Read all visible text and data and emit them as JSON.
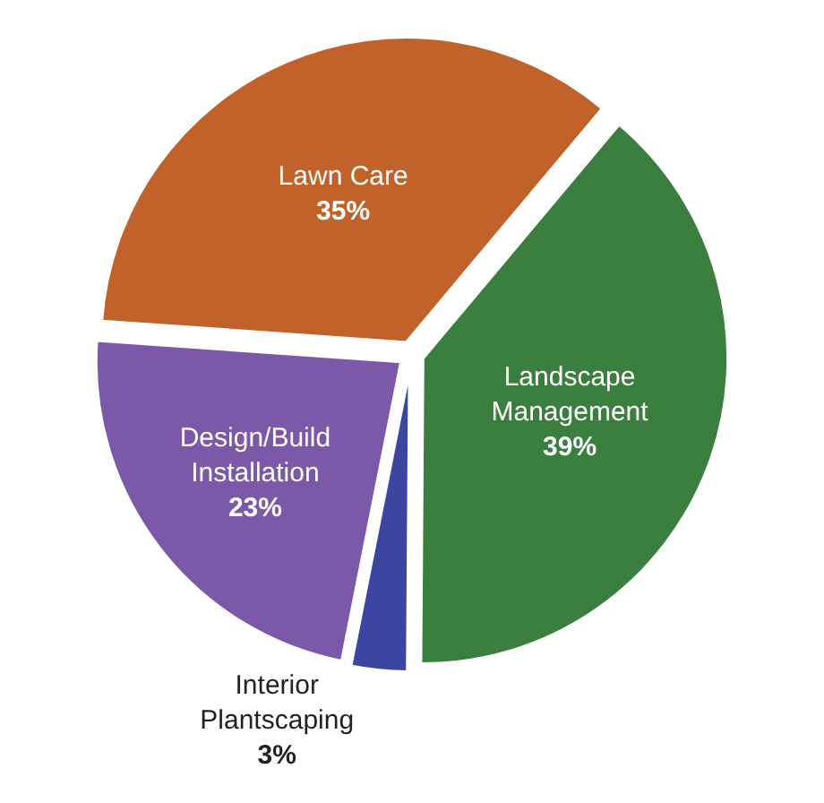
{
  "chart_data": {
    "type": "pie",
    "categories": [
      "Landscape Management",
      "Interior Plantscaping",
      "Design/Build Installation",
      "Lawn Care"
    ],
    "values": [
      39,
      3,
      23,
      35
    ],
    "value_labels": [
      "39%",
      "3%",
      "23%",
      "35%"
    ],
    "colors": [
      "#3b7f3f",
      "#3a46a0",
      "#7c59a8",
      "#c1622b"
    ],
    "legend": false
  }
}
